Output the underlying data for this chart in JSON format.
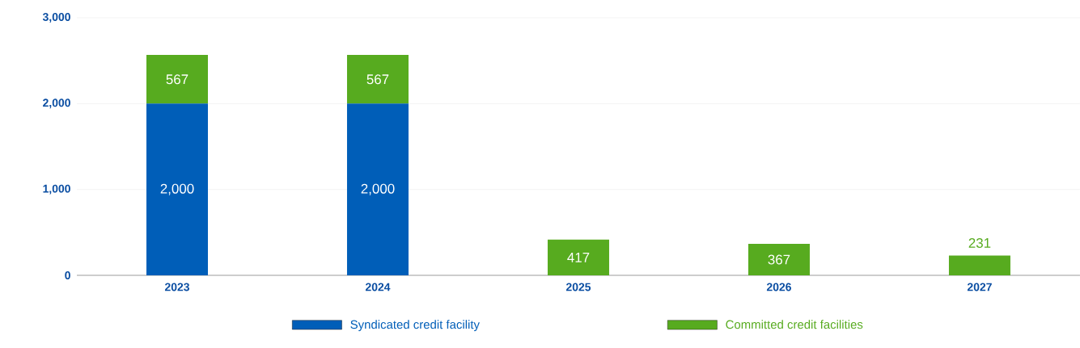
{
  "chart_data": {
    "type": "bar",
    "stacked": true,
    "categories": [
      "2023",
      "2024",
      "2025",
      "2026",
      "2027"
    ],
    "series": [
      {
        "name": "Syndicated credit facility",
        "color": "#005eb8",
        "values": [
          2000,
          2000,
          null,
          null,
          null
        ],
        "value_labels": [
          "2,000",
          "2,000",
          null,
          null,
          null
        ]
      },
      {
        "name": "Committed credit facilities",
        "color": "#57ab1f",
        "values": [
          567,
          567,
          417,
          367,
          231
        ],
        "value_labels": [
          "567",
          "567",
          "417",
          "367",
          "231"
        ]
      }
    ],
    "ylim": [
      0,
      3000
    ],
    "yticks": [
      0,
      {
        "value": 1000,
        "label": "1,000"
      },
      {
        "value": 2000,
        "label": "2,000"
      },
      {
        "value": 3000,
        "label": "3,000"
      }
    ],
    "grid": "y",
    "legend": "bottom"
  }
}
